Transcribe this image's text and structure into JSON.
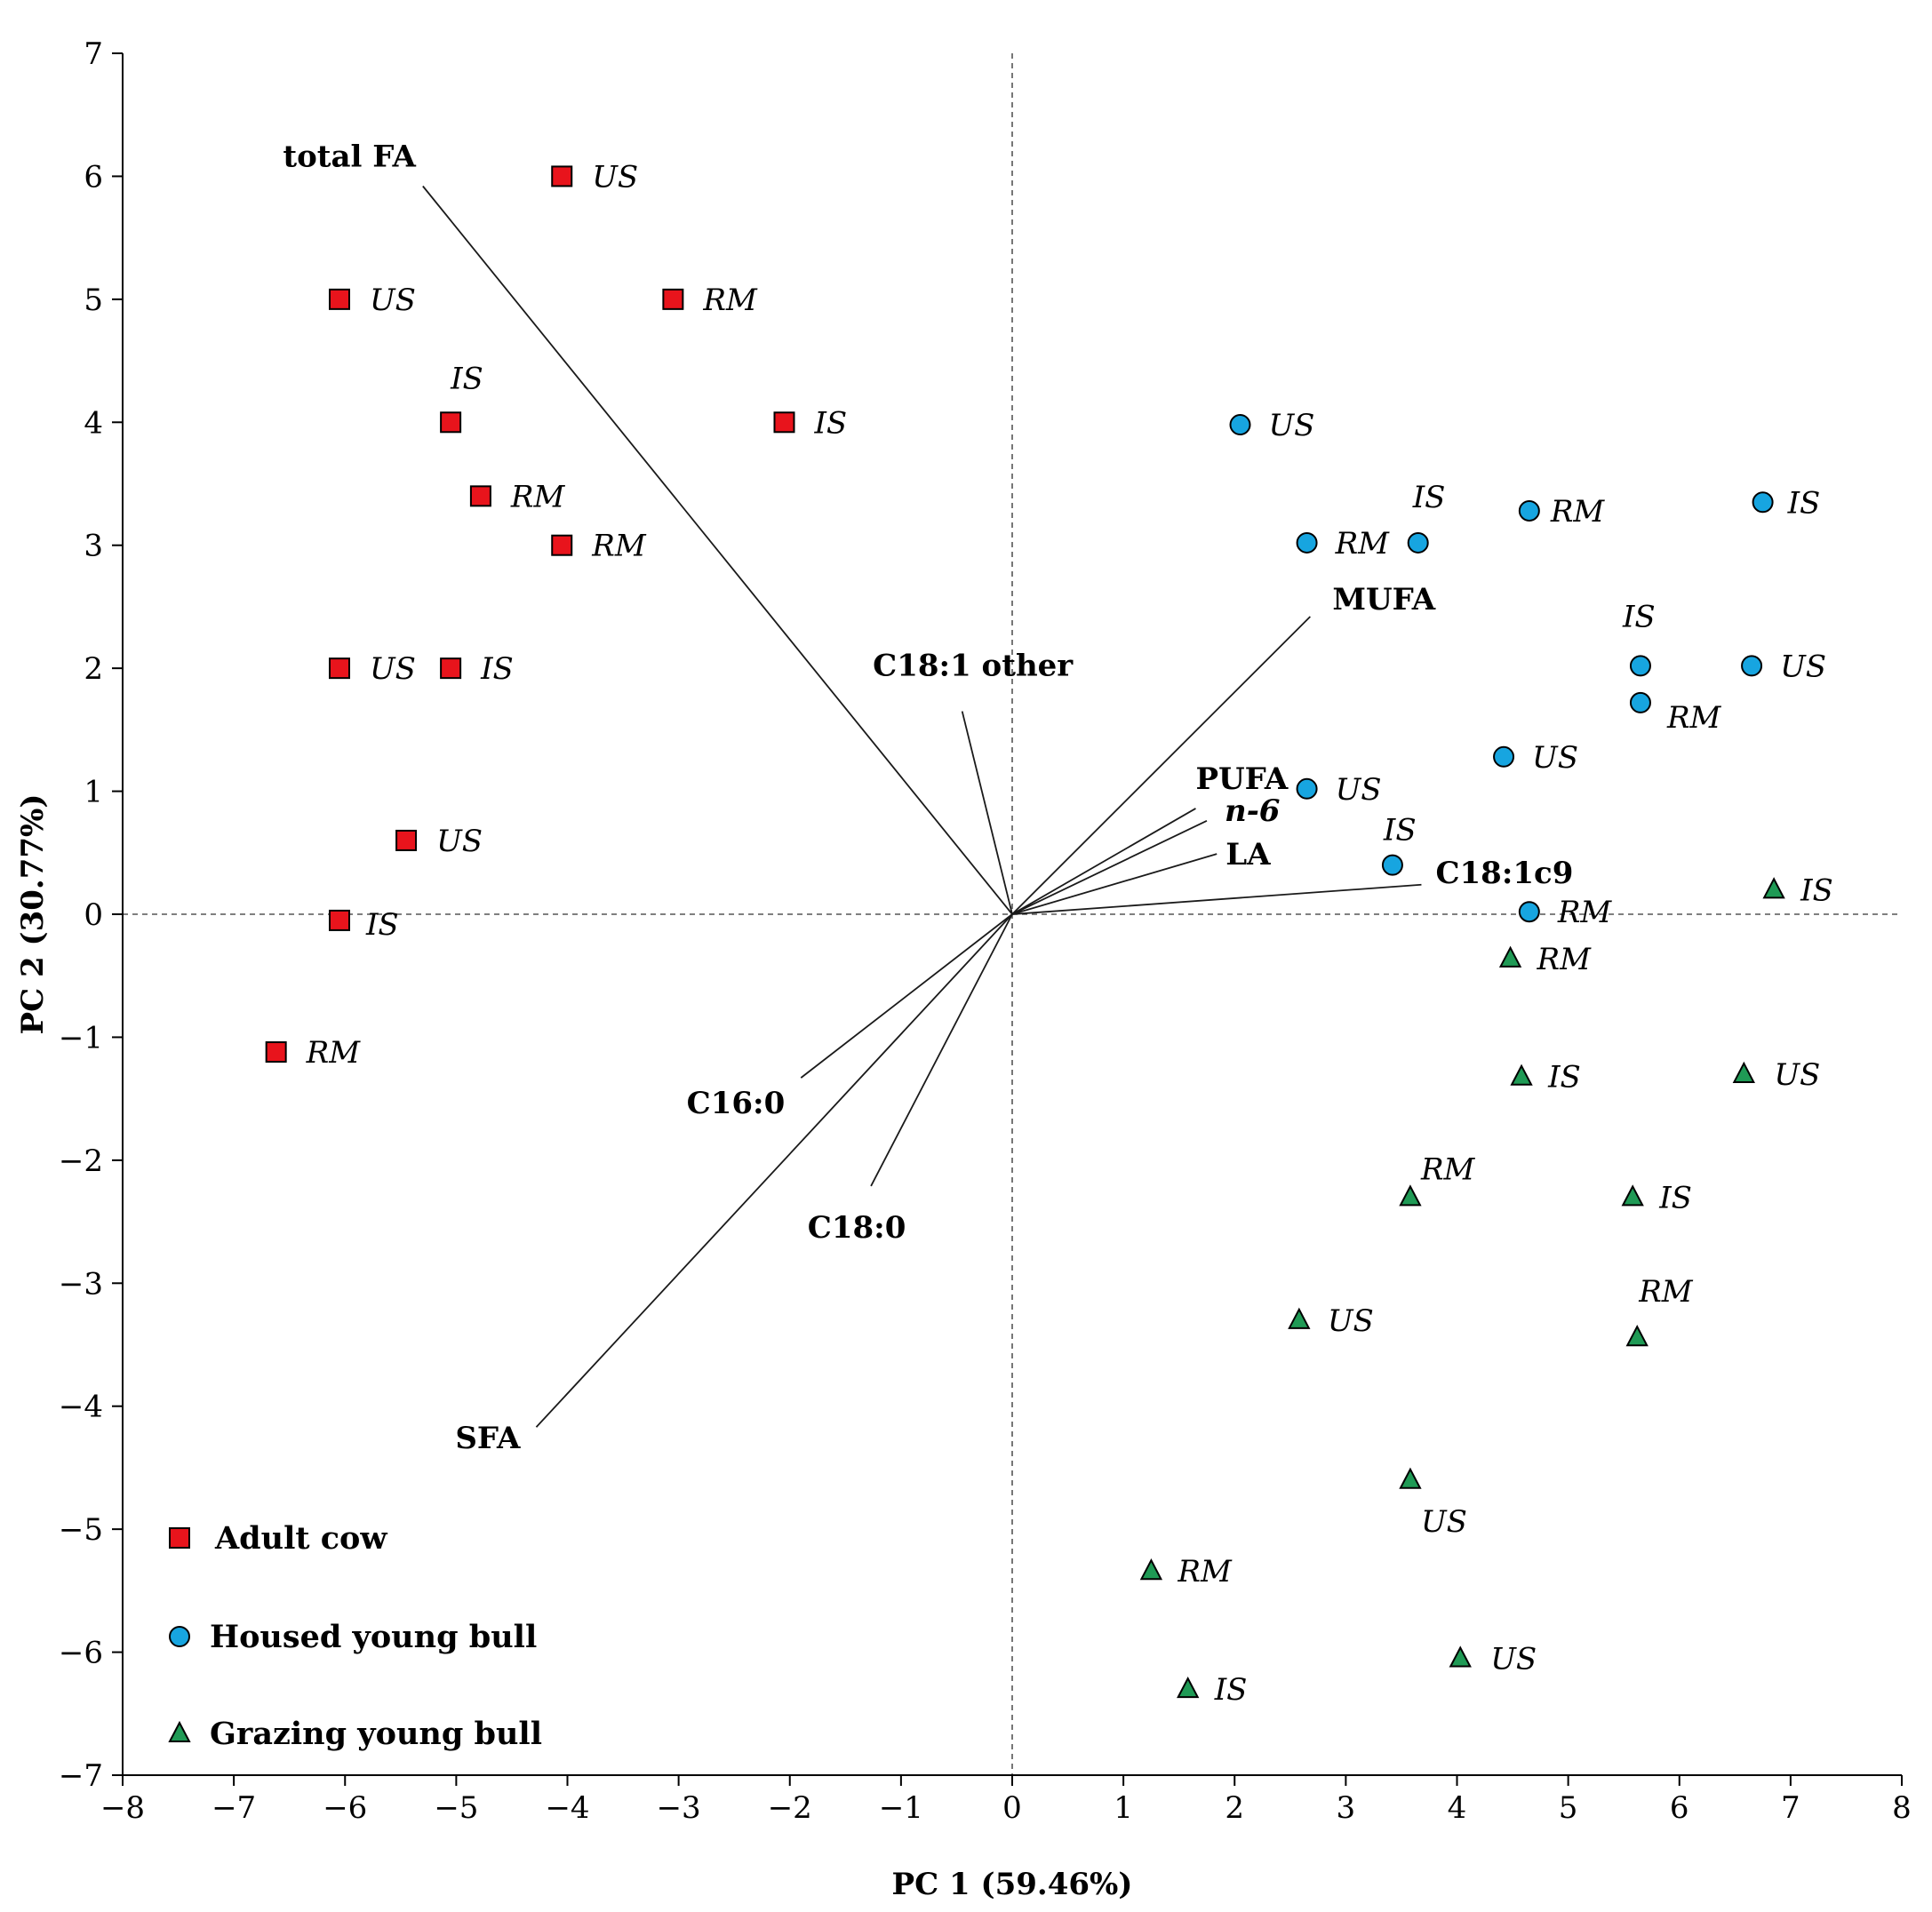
{
  "chart_data": {
    "type": "scatter",
    "subtype": "pca-biplot",
    "title": "",
    "xlabel": "PC 1 (59.46%)",
    "ylabel": "PC 2 (30.77%)",
    "xlim": [
      -8,
      8
    ],
    "ylim": [
      -7,
      7
    ],
    "x_ticks": [
      "−8",
      "−7",
      "−6",
      "−5",
      "−4",
      "−3",
      "−2",
      "−1",
      "0",
      "1",
      "2",
      "3",
      "4",
      "5",
      "6",
      "7",
      "8"
    ],
    "y_ticks": [
      "7",
      "6",
      "5",
      "4",
      "3",
      "2",
      "1",
      "0",
      "−1",
      "−2",
      "−3",
      "−4",
      "−5",
      "−6",
      "−7"
    ],
    "reference_lines": "dashed lines at x = 0 and y = 0",
    "legend_position": "bottom-left",
    "series": [
      {
        "name": "Adult cow",
        "marker": "square",
        "color": "#e8141c",
        "points": [
          {
            "x": -4.05,
            "y": 6.0,
            "label": "US"
          },
          {
            "x": -6.05,
            "y": 5.0,
            "label": "US"
          },
          {
            "x": -3.05,
            "y": 5.0,
            "label": "RM"
          },
          {
            "x": -5.05,
            "y": 4.0,
            "label": "IS"
          },
          {
            "x": -2.05,
            "y": 4.0,
            "label": "IS"
          },
          {
            "x": -4.78,
            "y": 3.4,
            "label": "RM"
          },
          {
            "x": -4.05,
            "y": 3.0,
            "label": "RM"
          },
          {
            "x": -6.05,
            "y": 2.0,
            "label": "US"
          },
          {
            "x": -5.05,
            "y": 2.0,
            "label": "IS"
          },
          {
            "x": -5.45,
            "y": 0.6,
            "label": "US"
          },
          {
            "x": -6.05,
            "y": -0.05,
            "label": "IS"
          },
          {
            "x": -6.62,
            "y": -1.12,
            "label": "RM"
          }
        ]
      },
      {
        "name": "Housed young bull",
        "marker": "circle",
        "color": "#17a5e0",
        "points": [
          {
            "x": 2.05,
            "y": 3.98,
            "label": "US"
          },
          {
            "x": 2.65,
            "y": 3.02,
            "label": "RM"
          },
          {
            "x": 3.65,
            "y": 3.02,
            "label": "IS"
          },
          {
            "x": 4.65,
            "y": 3.28,
            "label": "RM"
          },
          {
            "x": 6.75,
            "y": 3.35,
            "label": "IS"
          },
          {
            "x": 5.65,
            "y": 2.02,
            "label": "IS"
          },
          {
            "x": 6.65,
            "y": 2.02,
            "label": "US"
          },
          {
            "x": 5.65,
            "y": 1.72,
            "label": "RM"
          },
          {
            "x": 4.42,
            "y": 1.28,
            "label": "US"
          },
          {
            "x": 2.65,
            "y": 1.02,
            "label": "US"
          },
          {
            "x": 3.42,
            "y": 0.4,
            "label": "IS"
          },
          {
            "x": 4.65,
            "y": 0.02,
            "label": "RM"
          }
        ]
      },
      {
        "name": "Grazing young bull",
        "marker": "triangle",
        "color": "#1f9a55",
        "points": [
          {
            "x": 6.85,
            "y": 0.2,
            "label": "IS"
          },
          {
            "x": 4.48,
            "y": -0.36,
            "label": "RM"
          },
          {
            "x": 4.58,
            "y": -1.32,
            "label": "IS"
          },
          {
            "x": 6.58,
            "y": -1.3,
            "label": "US"
          },
          {
            "x": 3.58,
            "y": -2.3,
            "label": "RM"
          },
          {
            "x": 5.58,
            "y": -2.3,
            "label": "IS"
          },
          {
            "x": 2.58,
            "y": -3.3,
            "label": "US"
          },
          {
            "x": 5.62,
            "y": -3.44,
            "label": "RM"
          },
          {
            "x": 3.58,
            "y": -4.6,
            "label": "US"
          },
          {
            "x": 1.25,
            "y": -5.34,
            "label": "RM"
          },
          {
            "x": 1.58,
            "y": -6.3,
            "label": "IS"
          },
          {
            "x": 4.03,
            "y": -6.05,
            "label": "US"
          }
        ]
      }
    ],
    "loadings": [
      {
        "name": "total FA",
        "x": -5.3,
        "y": 5.92
      },
      {
        "name": "C18:1 other",
        "x": -0.45,
        "y": 1.65
      },
      {
        "name": "MUFA",
        "x": 2.68,
        "y": 2.42
      },
      {
        "name": "PUFA",
        "x": 1.65,
        "y": 0.86
      },
      {
        "name": "n-6",
        "x": 1.75,
        "y": 0.76
      },
      {
        "name": "LA",
        "x": 1.84,
        "y": 0.49
      },
      {
        "name": "C18:1c9",
        "x": 3.68,
        "y": 0.24
      },
      {
        "name": "C16:0",
        "x": -1.9,
        "y": -1.33
      },
      {
        "name": "C18:0",
        "x": -1.27,
        "y": -2.21
      },
      {
        "name": "SFA",
        "x": -4.28,
        "y": -4.17
      }
    ]
  }
}
